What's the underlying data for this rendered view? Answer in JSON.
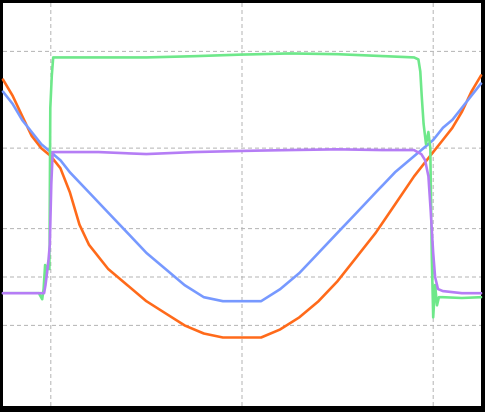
{
  "chart_data": {
    "type": "line",
    "title": "",
    "xlabel": "",
    "ylabel": "",
    "xlim": [
      0,
      100
    ],
    "ylim": [
      0,
      100
    ],
    "grid": true,
    "gridlines_x": [
      10,
      50,
      90
    ],
    "gridlines_y": [
      20,
      32,
      44,
      64,
      88
    ],
    "legend": "none",
    "series": [
      {
        "color": "#ff6a1a",
        "x": [
          0,
          2,
          4,
          6,
          8,
          10,
          12,
          14,
          16,
          18,
          20,
          22,
          26,
          30,
          34,
          38,
          42,
          46,
          50,
          54,
          58,
          62,
          66,
          70,
          74,
          78,
          82,
          86,
          88,
          90,
          92,
          94,
          96,
          98,
          100
        ],
        "y": [
          81,
          77,
          72,
          67,
          64,
          62,
          59,
          53,
          45,
          40,
          37,
          34,
          30,
          26,
          23,
          20,
          18,
          17,
          17,
          17,
          19,
          22,
          26,
          31,
          37,
          43,
          50,
          57,
          60,
          63,
          66,
          69,
          73,
          78,
          82
        ]
      },
      {
        "color": "#7799ff",
        "x": [
          0,
          2,
          4,
          6,
          8,
          10,
          12,
          14,
          18,
          22,
          26,
          30,
          34,
          38,
          42,
          46,
          50,
          54,
          58,
          62,
          66,
          70,
          74,
          78,
          82,
          86,
          88,
          90,
          92,
          94,
          96,
          98,
          100
        ],
        "y": [
          78,
          75,
          71,
          68,
          65,
          63,
          61,
          58,
          53,
          48,
          43,
          38,
          34,
          30,
          27,
          26,
          26,
          26,
          29,
          33,
          38,
          43,
          48,
          53,
          58,
          62,
          64,
          66,
          69,
          71,
          74,
          77,
          80
        ]
      },
      {
        "color": "#6ee88a",
        "x": [
          0,
          7.5,
          8.2,
          8.5,
          8.8,
          9.2,
          9.5,
          9.7,
          9.9,
          10.2,
          10.5,
          20,
          30,
          40,
          50,
          60,
          70,
          80,
          86,
          86.9,
          87.3,
          87.6,
          88,
          88.5,
          89,
          89.4,
          89.7,
          90,
          90.4,
          90.8,
          91.2,
          92,
          96,
          100
        ],
        "y": [
          28,
          28,
          26.5,
          29,
          35,
          33,
          36,
          34,
          74,
          82,
          86.5,
          86.5,
          86.5,
          86.8,
          87.2,
          87.5,
          87.3,
          86.8,
          86.5,
          86,
          83,
          77,
          70,
          65,
          68,
          64,
          37,
          22,
          30,
          25,
          27,
          27,
          26.8,
          27
        ]
      },
      {
        "color": "#b57df5",
        "x": [
          0,
          8.6,
          8.9,
          9.2,
          9.5,
          9.8,
          10.1,
          10.4,
          20,
          30,
          40,
          50,
          60,
          70,
          80,
          86,
          87.5,
          88.3,
          89,
          89.5,
          90,
          90.4,
          91,
          92,
          96,
          100
        ],
        "y": [
          28,
          28,
          30,
          33,
          36,
          40,
          55,
          63,
          63,
          62.5,
          63,
          63.3,
          63.5,
          63.7,
          63.5,
          63.5,
          62.5,
          61,
          57,
          48,
          38,
          32,
          29,
          28.5,
          28,
          28
        ]
      }
    ]
  }
}
